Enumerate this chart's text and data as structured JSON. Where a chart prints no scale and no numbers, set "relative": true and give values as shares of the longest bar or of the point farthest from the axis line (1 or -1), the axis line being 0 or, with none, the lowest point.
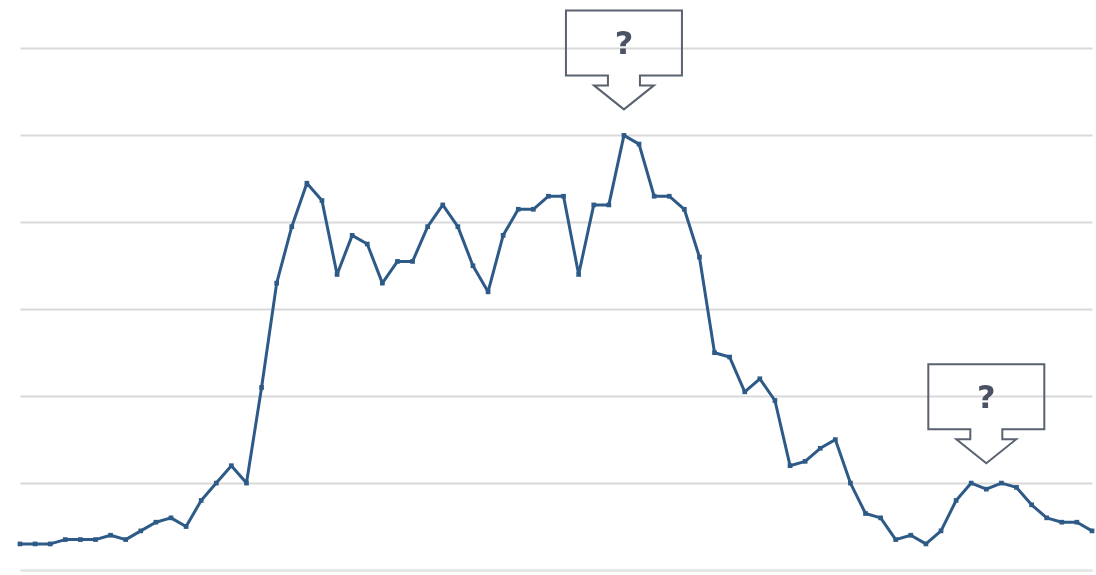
{
  "chart_data": {
    "type": "line",
    "relative": true,
    "grid": "y",
    "marker": "square",
    "line_style": "solid",
    "categories": [
      null,
      null,
      null,
      null,
      null,
      null,
      null,
      null,
      null,
      null,
      null,
      null,
      null,
      null,
      null,
      null,
      null,
      null,
      null,
      null,
      null,
      null,
      null,
      null,
      null,
      null,
      null,
      null,
      null,
      null,
      null,
      null,
      null,
      null,
      null,
      null,
      null,
      null,
      null,
      null,
      null,
      null,
      null,
      null,
      null,
      null,
      null,
      null,
      null,
      null,
      null,
      null,
      null,
      null,
      null,
      null,
      null,
      null,
      null,
      null,
      null,
      null,
      null,
      null,
      null,
      null,
      null,
      null,
      null,
      null,
      null,
      null
    ],
    "series": [
      {
        "color": "#2e5a87",
        "values": [
          0.06,
          0.06,
          0.06,
          0.07,
          0.07,
          0.07,
          0.08,
          0.07,
          0.09,
          0.11,
          0.12,
          0.1,
          0.16,
          0.2,
          0.24,
          0.2,
          0.42,
          0.66,
          0.79,
          0.89,
          0.85,
          0.68,
          0.77,
          0.75,
          0.66,
          0.71,
          0.71,
          0.79,
          0.84,
          0.79,
          0.7,
          0.64,
          0.77,
          0.83,
          0.83,
          0.86,
          0.86,
          0.68,
          0.84,
          0.84,
          1,
          0.98,
          0.86,
          0.86,
          0.83,
          0.72,
          0.5,
          0.49,
          0.41,
          0.44,
          0.39,
          0.24,
          0.25,
          0.28,
          0.3,
          0.2,
          0.13,
          0.12,
          0.07,
          0.08,
          0.06,
          0.09,
          0.16,
          0.2,
          0.186,
          0.2,
          0.19,
          0.15,
          0.12,
          0.11,
          0.11,
          0.09
        ]
      }
    ],
    "annotations": [
      {
        "text": "?",
        "y": 1
      },
      {
        "text": "?",
        "y": 0.186
      }
    ]
  }
}
